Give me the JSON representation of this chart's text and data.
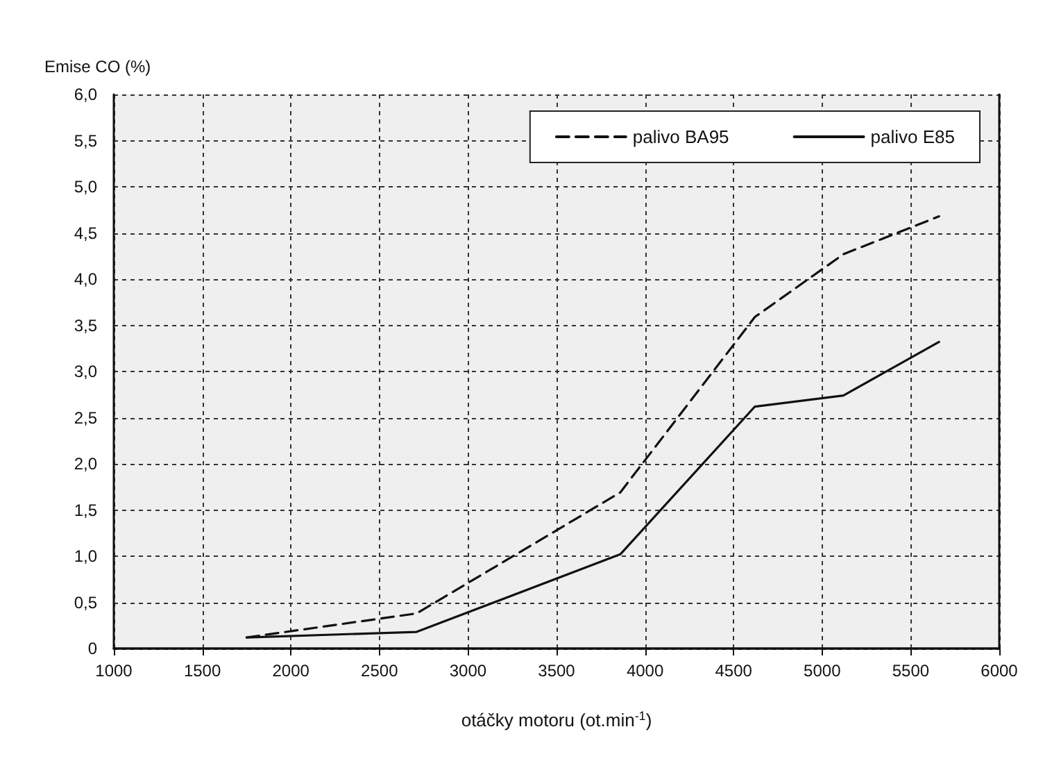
{
  "chart_data": {
    "type": "line",
    "xlabel": "otáčky motoru (ot.min$^{-1}$)",
    "ylabel": "Emise CO (%)",
    "x": [
      1750,
      2710,
      3860,
      4620,
      5120,
      5660
    ],
    "series": [
      {
        "name": "palivo BA95",
        "color": "#111111",
        "line_style": "dashed",
        "values": [
          0.12,
          0.38,
          1.69,
          3.59,
          4.27,
          4.68
        ]
      },
      {
        "name": "palivo E85",
        "color": "#111111",
        "line_style": "solid",
        "values": [
          0.12,
          0.18,
          1.02,
          2.62,
          2.74,
          3.32
        ]
      }
    ],
    "xlim": [
      1000,
      6000
    ],
    "xticks": [
      1000,
      1500,
      2000,
      2500,
      3000,
      3500,
      4000,
      4500,
      5000,
      5500,
      6000
    ],
    "ylim": [
      0,
      6
    ],
    "yticks": [
      0,
      {
        "value": 0.5,
        "label": "0,5"
      },
      {
        "value": 1,
        "label": "1,0"
      },
      {
        "value": 1.5,
        "label": "1,5"
      },
      {
        "value": 2,
        "label": "2,0"
      },
      {
        "value": 2.5,
        "label": "2,5"
      },
      {
        "value": 3,
        "label": "3,0"
      },
      {
        "value": 3.5,
        "label": "3,5"
      },
      {
        "value": 4,
        "label": "4,0"
      },
      {
        "value": 4.5,
        "label": "4,5"
      },
      {
        "value": 5,
        "label": "5,0"
      },
      {
        "value": 5.5,
        "label": "5,5"
      },
      {
        "value": 6,
        "label": "6,0"
      }
    ],
    "grid": true,
    "legend": "top right",
    "marker": "none"
  }
}
